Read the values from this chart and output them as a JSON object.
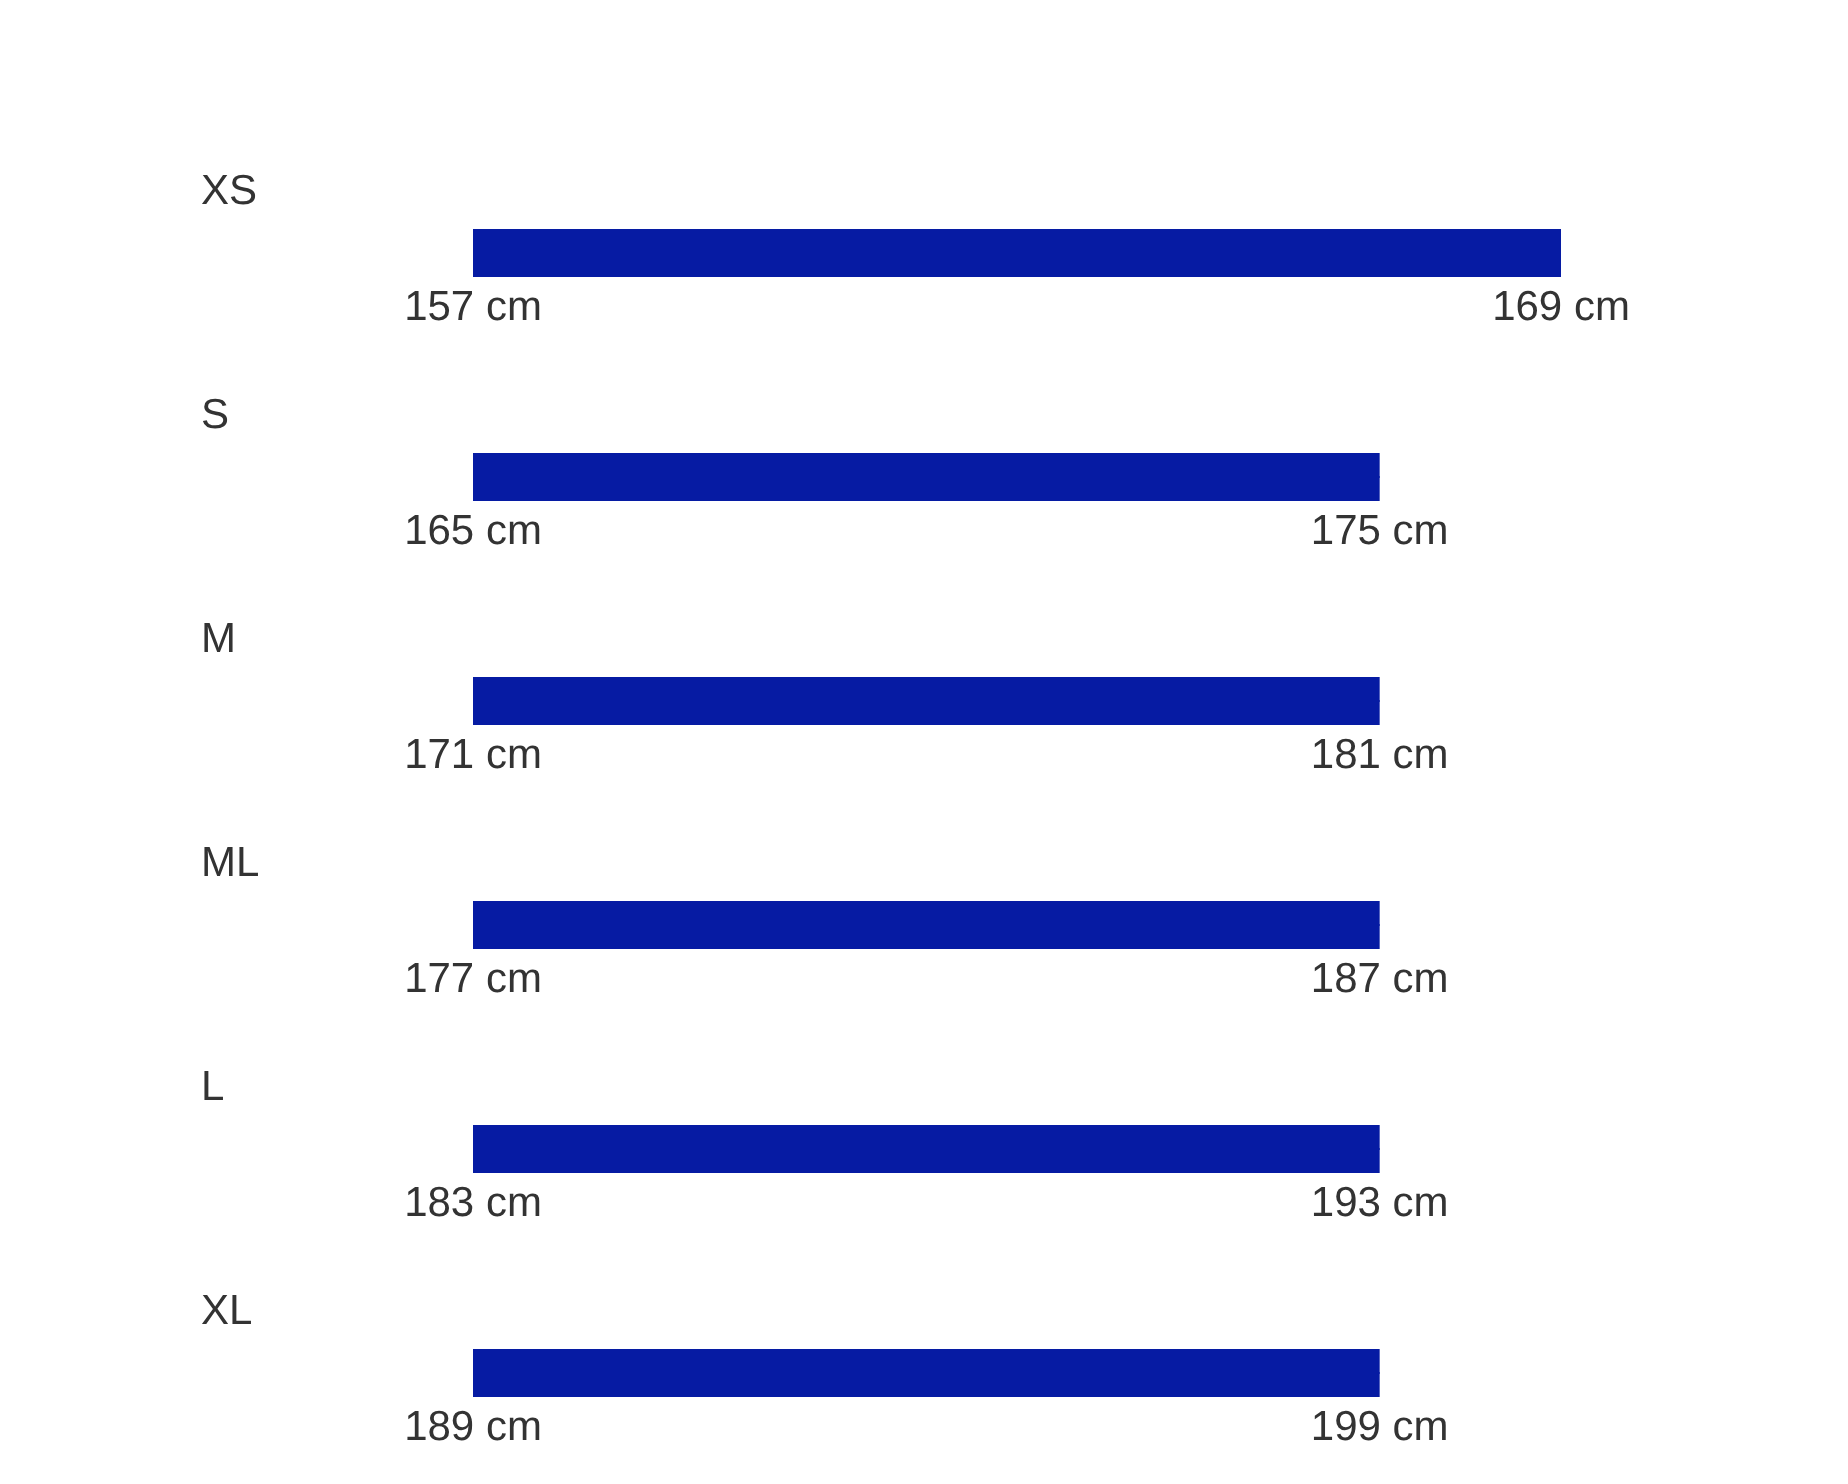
{
  "chart_data": [
    {
      "type": "bar",
      "orientation": "horizontal",
      "categories": [
        "XS"
      ],
      "base": [
        157
      ],
      "values": [
        12
      ],
      "xlim": [
        157,
        169
      ],
      "xticks": [
        {
          "value": 157,
          "label": "157 cm"
        },
        {
          "value": 169,
          "label": "169 cm"
        }
      ],
      "color": "#061ba3"
    },
    {
      "type": "bar",
      "orientation": "horizontal",
      "categories": [
        "S"
      ],
      "base": [
        165
      ],
      "values": [
        10
      ],
      "xlim": [
        165,
        175
      ],
      "xticks": [
        {
          "value": 165,
          "label": "165 cm"
        },
        {
          "value": 175,
          "label": "175 cm"
        }
      ],
      "color": "#061ba3"
    },
    {
      "type": "bar",
      "orientation": "horizontal",
      "categories": [
        "M"
      ],
      "base": [
        171
      ],
      "values": [
        10
      ],
      "xlim": [
        171,
        181
      ],
      "xticks": [
        {
          "value": 171,
          "label": "171 cm"
        },
        {
          "value": 181,
          "label": "181 cm"
        }
      ],
      "color": "#061ba3"
    },
    {
      "type": "bar",
      "orientation": "horizontal",
      "categories": [
        "ML"
      ],
      "base": [
        177
      ],
      "values": [
        10
      ],
      "xlim": [
        177,
        187
      ],
      "xticks": [
        {
          "value": 177,
          "label": "177 cm"
        },
        {
          "value": 187,
          "label": "187 cm"
        }
      ],
      "color": "#061ba3"
    },
    {
      "type": "bar",
      "orientation": "horizontal",
      "categories": [
        "L"
      ],
      "base": [
        183
      ],
      "values": [
        10
      ],
      "xlim": [
        183,
        193
      ],
      "xticks": [
        {
          "value": 183,
          "label": "183 cm"
        },
        {
          "value": 193,
          "label": "193 cm"
        }
      ],
      "color": "#061ba3"
    },
    {
      "type": "bar",
      "orientation": "horizontal",
      "categories": [
        "XL"
      ],
      "base": [
        189
      ],
      "values": [
        10
      ],
      "xlim": [
        189,
        199
      ],
      "xticks": [
        {
          "value": 189,
          "label": "189 cm"
        },
        {
          "value": 199,
          "label": "199 cm"
        }
      ],
      "color": "#061ba3"
    }
  ]
}
